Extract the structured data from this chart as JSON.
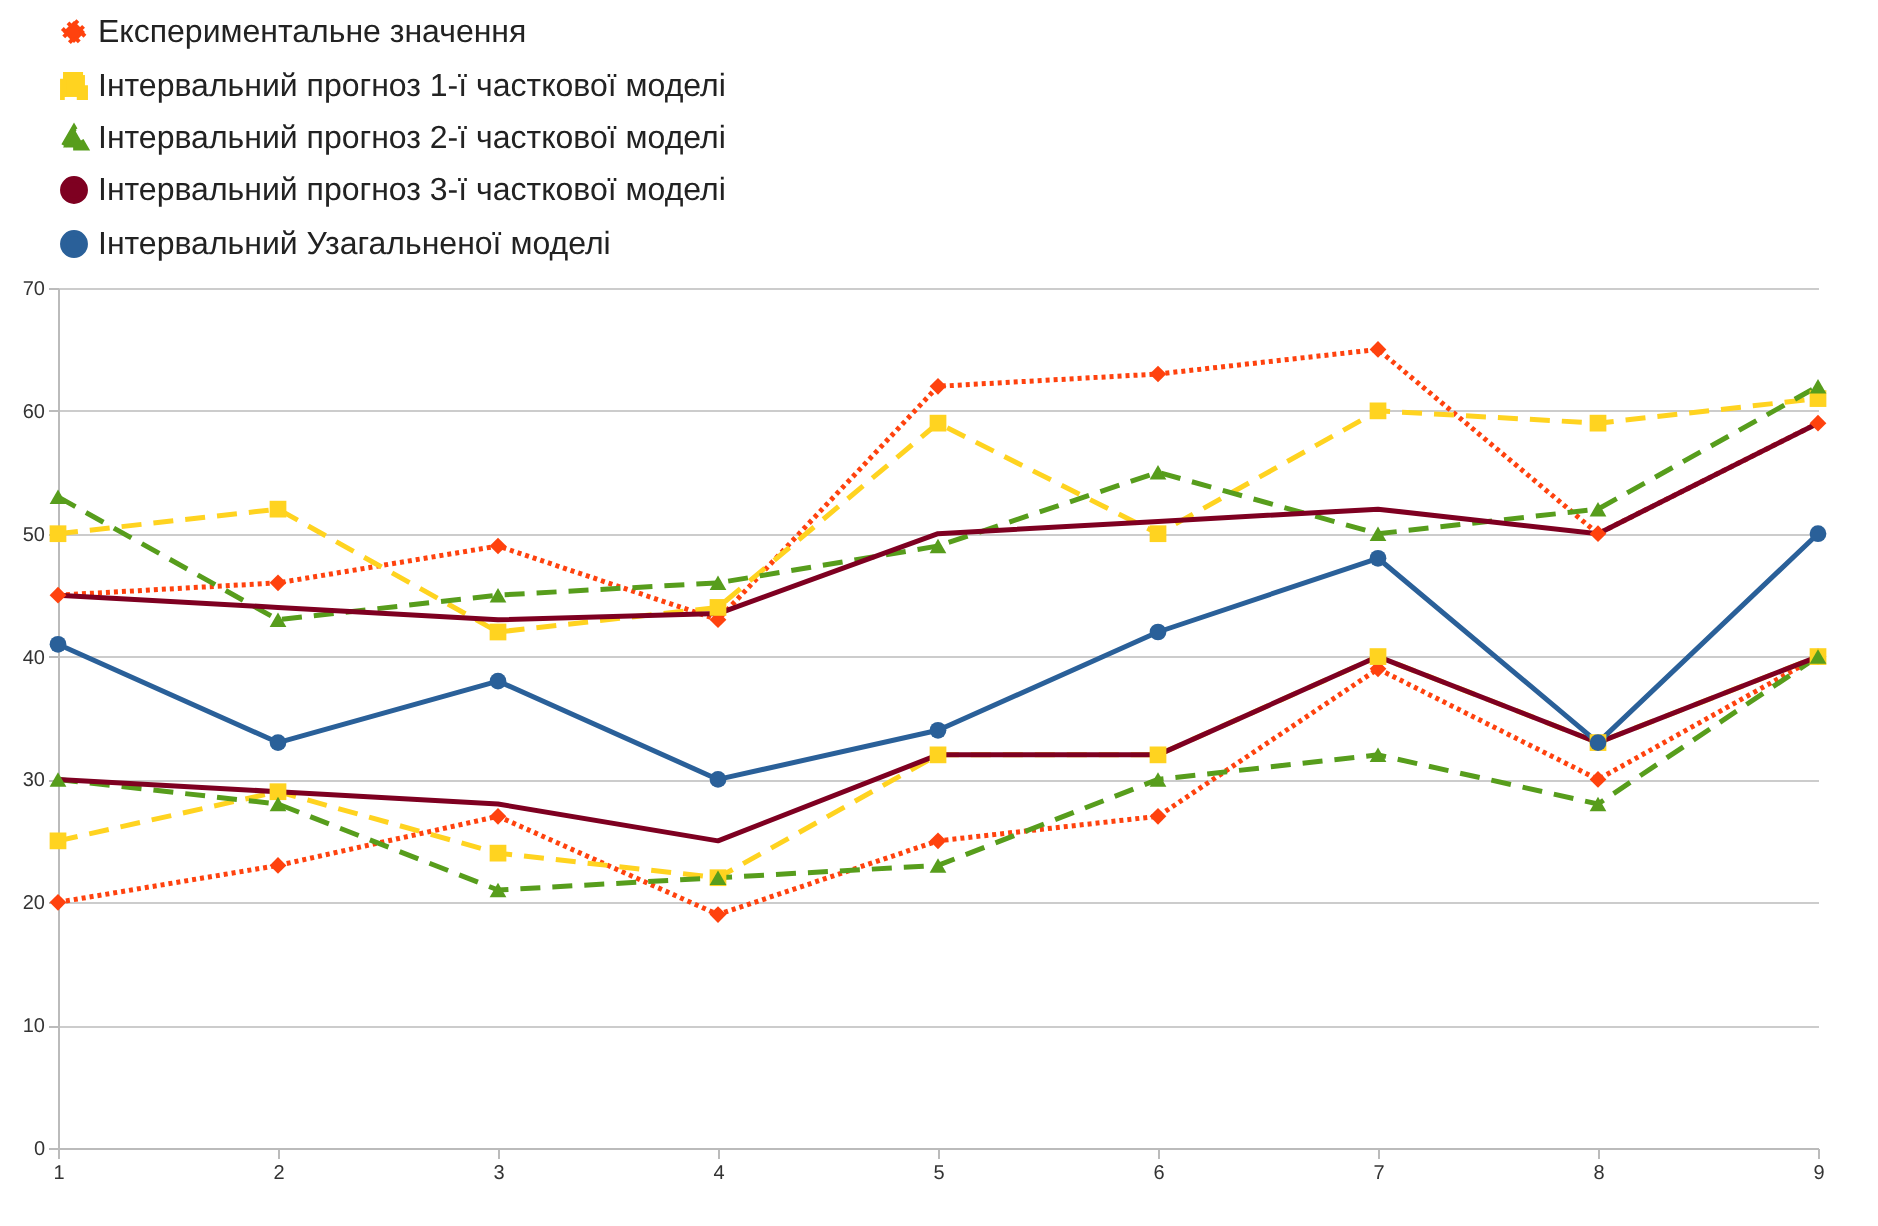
{
  "chart_data": {
    "type": "line",
    "x": [
      1,
      2,
      3,
      4,
      5,
      6,
      7,
      8,
      9
    ],
    "series": [
      {
        "name": "Експериментальне значення",
        "color": "#ff420e",
        "marker": "diamond",
        "line_style": "dotted",
        "values": [
          45,
          46,
          49,
          43,
          62,
          63,
          65,
          50,
          59
        ]
      },
      {
        "color": "#ff420e",
        "marker": "diamond",
        "line_style": "dotted",
        "values": [
          20,
          23,
          27,
          19,
          25,
          27,
          39,
          30,
          40
        ]
      },
      {
        "name": "Інтервальний прогноз 1-ї часткової моделі",
        "color": "#ffd320",
        "marker": "square",
        "line_style": "dashed",
        "values": [
          50,
          52,
          42,
          44,
          59,
          50,
          60,
          59,
          61
        ]
      },
      {
        "color": "#ffd320",
        "marker": "square",
        "line_style": "dashed",
        "values": [
          25,
          29,
          24,
          22,
          32,
          32,
          40,
          33,
          40
        ]
      },
      {
        "name": "Інтервальний прогноз 2-ї часткової моделі",
        "color": "#579d1c",
        "marker": "triangle",
        "line_style": "dashed",
        "values": [
          53,
          43,
          45,
          46,
          49,
          55,
          50,
          52,
          62
        ]
      },
      {
        "color": "#579d1c",
        "marker": "triangle",
        "line_style": "dashed",
        "values": [
          30,
          28,
          21,
          22,
          23,
          30,
          32,
          28,
          40
        ]
      },
      {
        "name": "Інтервальний прогноз 3-ї часткової моделі",
        "color": "#7e0021",
        "marker": "none",
        "line_style": "solid",
        "values": [
          45,
          44,
          43,
          43.5,
          50,
          51,
          52,
          50,
          59
        ]
      },
      {
        "color": "#7e0021",
        "marker": "none",
        "line_style": "solid",
        "values": [
          30,
          29,
          28,
          25,
          32,
          32,
          40,
          33,
          40
        ]
      },
      {
        "name": "Інтервальний Узагальненої моделі",
        "color": "#2a6099",
        "marker": "circle",
        "line_style": "solid",
        "values": [
          41,
          33,
          38,
          30,
          34,
          42,
          48,
          33,
          50
        ]
      }
    ],
    "xlim": [
      1,
      9
    ],
    "xticks": [
      1,
      2,
      3,
      4,
      5,
      6,
      7,
      8,
      9
    ],
    "ylim": [
      0,
      70
    ],
    "yticks": [
      0,
      10,
      20,
      30,
      40,
      50,
      60,
      70
    ],
    "grid": "y",
    "legend": "top left"
  }
}
